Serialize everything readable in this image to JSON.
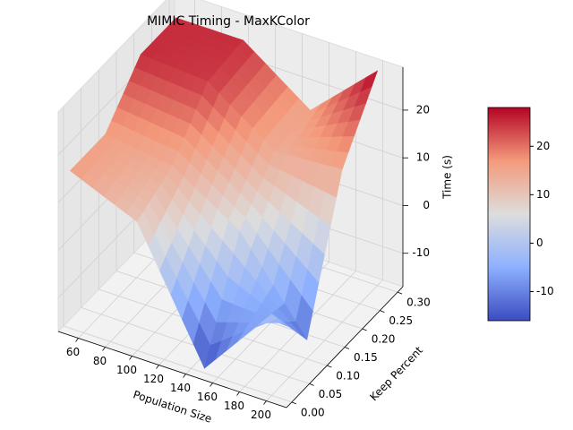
{
  "chart_data": {
    "type": "surface",
    "title": "MIMIC Timing - MaxKColor",
    "xlabel": "Population Size",
    "ylabel": "Keep Percent",
    "zlabel": "Time (s)",
    "x": [
      50,
      100,
      150,
      200
    ],
    "y": [
      0.0,
      0.1,
      0.2,
      0.3
    ],
    "z": [
      [
        16,
        10,
        -16,
        0
      ],
      [
        16,
        14,
        5,
        -13
      ],
      [
        25,
        24,
        14,
        15
      ],
      [
        25,
        25,
        15,
        28
      ]
    ],
    "xlim": [
      45,
      215
    ],
    "ylim": [
      -0.015,
      0.315
    ],
    "zlim": [
      -17,
      29
    ],
    "xticks": [
      60,
      80,
      100,
      120,
      140,
      160,
      180,
      200
    ],
    "yticks": [
      {
        "value": 0,
        "label": "0.00"
      },
      {
        "value": 0.05,
        "label": "0.05"
      },
      {
        "value": 0.1,
        "label": "0.10"
      },
      {
        "value": 0.15,
        "label": "0.15"
      },
      {
        "value": 0.2,
        "label": "0.20"
      },
      {
        "value": 0.25,
        "label": "0.25"
      },
      {
        "value": 0.3,
        "label": "0.30"
      }
    ],
    "zticks": [
      -10,
      0,
      10,
      20
    ],
    "colormap": "coolwarm",
    "colorbar": true,
    "colorbar_ticks": [
      -10,
      0,
      10,
      20
    ],
    "grid": true
  }
}
